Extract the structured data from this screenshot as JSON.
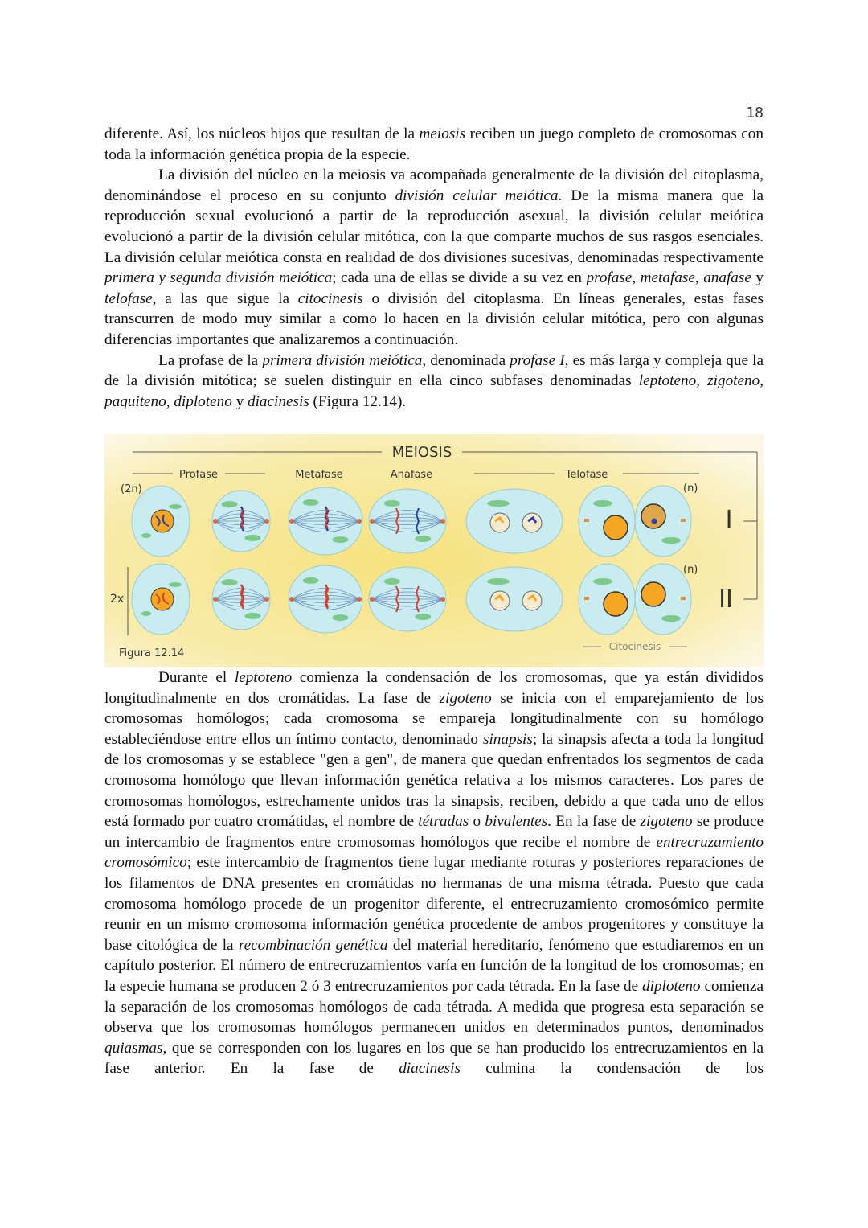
{
  "page_number": "18",
  "paragraphs_top": [
    {
      "indent": false,
      "segments": [
        {
          "t": "diferente. Así, los núcleos hijos que resultan de la "
        },
        {
          "t": "meiosis",
          "i": true
        },
        {
          "t": " reciben un juego completo de cromosomas con toda la información genética propia de la especie."
        }
      ]
    },
    {
      "indent": true,
      "segments": [
        {
          "t": "La división del núcleo en la meiosis va acompañada generalmente de la división del citoplasma, denominándose el proceso en su conjunto "
        },
        {
          "t": "división celular meiótica",
          "i": true
        },
        {
          "t": ". De la misma manera que la reproducción sexual evolucionó a partir de la reproducción asexual, la división celular meiótica evolucionó a partir de la división celular mitótica, con la que comparte muchos de sus rasgos esenciales. La división celular meiótica consta en realidad de dos divisiones sucesivas, denominadas respectivamente "
        },
        {
          "t": "primera y segunda división meiótica",
          "i": true
        },
        {
          "t": "; cada una de ellas se divide a su vez en "
        },
        {
          "t": "profase, metafase, anafase",
          "i": true
        },
        {
          "t": " y "
        },
        {
          "t": "telofase",
          "i": true
        },
        {
          "t": ", a las que sigue la "
        },
        {
          "t": "citocinesis",
          "i": true
        },
        {
          "t": " o división del citoplasma. En líneas generales, estas fases transcurren de modo muy similar a como lo hacen en la división celular mitótica, pero con algunas diferencias importantes que analizaremos a continuación."
        }
      ]
    },
    {
      "indent": true,
      "segments": [
        {
          "t": "La profase de la "
        },
        {
          "t": "primera división meiótica",
          "i": true
        },
        {
          "t": ", denominada "
        },
        {
          "t": "profase I",
          "i": true
        },
        {
          "t": ", es más larga y compleja que la de la división mitótica; se suelen distinguir en ella cinco subfases denominadas "
        },
        {
          "t": "leptoteno, zigoteno, paquiteno, diploteno",
          "i": true
        },
        {
          "t": " y "
        },
        {
          "t": "diacinesis",
          "i": true
        },
        {
          "t": " (Figura 12.14)."
        }
      ]
    }
  ],
  "figure": {
    "title": "MEIOSIS",
    "phases": [
      "Profase",
      "Metafase",
      "Anafase",
      "Telofase"
    ],
    "ploidy_top": "(2n)",
    "ploidy_haploid_1": "(n)",
    "ploidy_haploid_2": "(n)",
    "repeat_label": "2x",
    "division_1": "I",
    "division_2": "II",
    "cytokinesis_label": "Citocinesis",
    "caption": "Figura 12.14",
    "colors": {
      "background": "#f6e58f",
      "cell": "#c8ecf0",
      "nucleus": "#f5a623",
      "chromosome_red": "#d9412b",
      "chromosome_blue": "#2b3fa8",
      "organelle": "#7cc98a"
    }
  },
  "paragraphs_bottom": [
    {
      "indent": true,
      "segments": [
        {
          "t": "Durante el "
        },
        {
          "t": "leptoteno",
          "i": true
        },
        {
          "t": " comienza la condensación de los cromosomas, que ya están divididos longitudinalmente en dos cromátidas. La fase de "
        },
        {
          "t": "zigoteno",
          "i": true
        },
        {
          "t": " se inicia con el emparejamiento de los cromosomas homólogos; cada cromosoma se empareja longitudinalmente con su homólogo estableciéndose entre ellos un íntimo contacto, denominado "
        },
        {
          "t": "sinapsis",
          "i": true
        },
        {
          "t": "; la sinapsis afecta a toda la longitud de los cromosomas y se establece \"gen a gen\", de manera que quedan enfrentados los segmentos de cada cromosoma homólogo que llevan información genética relativa a los mismos caracteres. Los pares de cromosomas homólogos, estrechamente unidos tras la sinapsis, reciben, debido a que cada uno de ellos está formado por cuatro cromátidas, el nombre de "
        },
        {
          "t": "tétradas",
          "i": true
        },
        {
          "t": " o "
        },
        {
          "t": "bivalentes",
          "i": true
        },
        {
          "t": ". En la fase de "
        },
        {
          "t": "zigoteno",
          "i": true
        },
        {
          "t": " se produce un intercambio de fragmentos entre cromosomas homólogos que recibe el nombre de "
        },
        {
          "t": "entrecruzamiento cromosómico",
          "i": true
        },
        {
          "t": "; este intercambio de fragmentos tiene lugar mediante roturas y posteriores reparaciones de los filamentos de DNA presentes en cromátidas no hermanas de una misma tétrada. Puesto que cada cromosoma homólogo procede de un progenitor diferente, el entrecruzamiento cromosómico permite reunir en un mismo cromosoma información genética procedente de ambos progenitores y constituye la base citológica de la "
        },
        {
          "t": "recombinación genética",
          "i": true
        },
        {
          "t": " del material hereditario, fenómeno que estudiaremos en un capítulo posterior. El número de entrecruzamientos varía en función de la longitud de los cromosomas; en la especie humana se producen 2 ó 3 entrecruzamientos por cada tétrada. En la fase de "
        },
        {
          "t": "diploteno",
          "i": true
        },
        {
          "t": " comienza la separación de los cromosomas homólogos de cada tétrada. A medida que progresa esta separación se observa que los cromosomas homólogos permanecen unidos en determinados puntos, denominados "
        },
        {
          "t": "quiasmas",
          "i": true
        },
        {
          "t": ", que se corresponden con los lugares en los que se han producido los entrecruzamientos en la fase anterior. En la fase de "
        },
        {
          "t": "diacinesis",
          "i": true
        },
        {
          "t": " culmina la condensación de los"
        }
      ]
    }
  ]
}
